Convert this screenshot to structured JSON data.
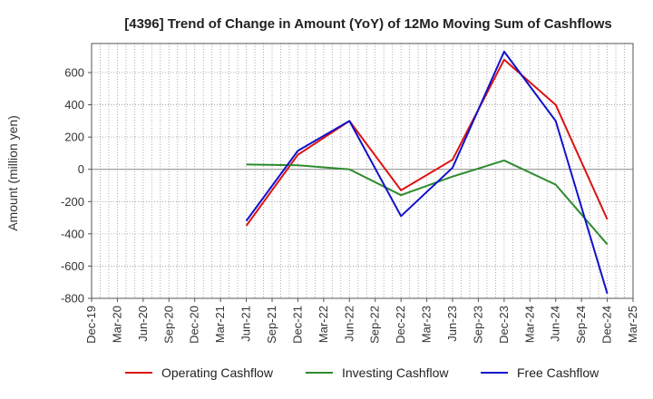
{
  "chart_data": {
    "type": "line",
    "title": "[4396]  Trend of Change in Amount (YoY) of 12Mo Moving Sum of Cashflows",
    "xlabel": "",
    "ylabel": "Amount (million yen)",
    "ylim": [
      -800,
      780
    ],
    "yticks": [
      -800,
      -600,
      -400,
      -200,
      0,
      200,
      400,
      600
    ],
    "grid": true,
    "legend_position": "bottom",
    "categories": [
      "Dec-19",
      "Mar-20",
      "Jun-20",
      "Sep-20",
      "Dec-20",
      "Mar-21",
      "Jun-21",
      "Sep-21",
      "Dec-21",
      "Mar-22",
      "Jun-22",
      "Sep-22",
      "Dec-22",
      "Mar-23",
      "Jun-23",
      "Sep-23",
      "Dec-23",
      "Mar-24",
      "Jun-24",
      "Sep-24",
      "Dec-24",
      "Mar-25"
    ],
    "series": [
      {
        "name": "Operating Cashflow",
        "color": "#dd1111",
        "values": [
          null,
          null,
          null,
          null,
          null,
          null,
          -350,
          null,
          90,
          null,
          300,
          null,
          -130,
          null,
          60,
          null,
          680,
          null,
          400,
          null,
          -310,
          null
        ]
      },
      {
        "name": "Investing Cashflow",
        "color": "#2e8b2e",
        "values": [
          null,
          null,
          null,
          null,
          null,
          null,
          30,
          null,
          25,
          null,
          0,
          null,
          -160,
          null,
          -45,
          null,
          55,
          null,
          -95,
          null,
          -465,
          null
        ]
      },
      {
        "name": "Free Cashflow",
        "color": "#1111cc",
        "values": [
          null,
          null,
          null,
          null,
          null,
          null,
          -320,
          null,
          115,
          null,
          300,
          null,
          -290,
          null,
          10,
          null,
          730,
          null,
          300,
          null,
          -770,
          null
        ]
      }
    ]
  }
}
